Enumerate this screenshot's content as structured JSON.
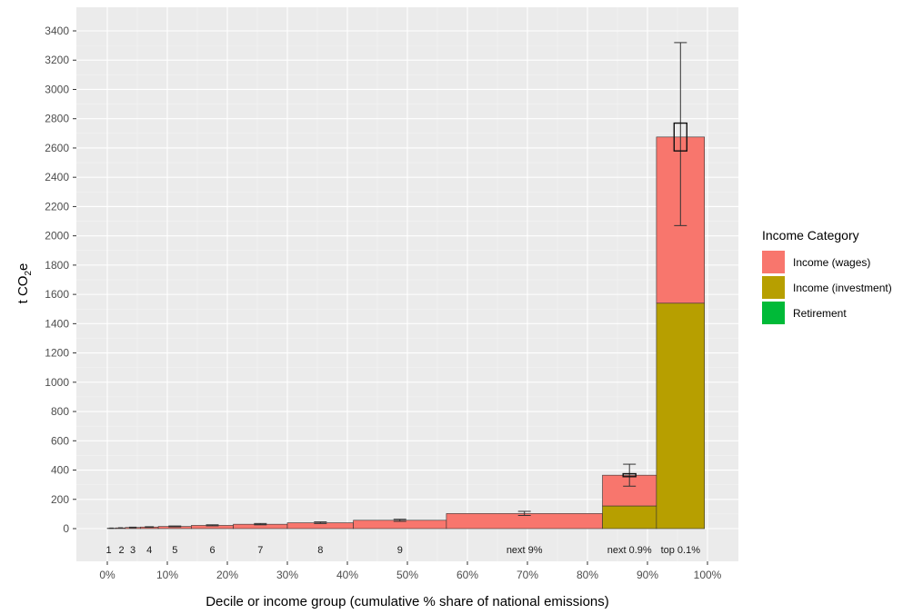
{
  "chart_data": {
    "type": "bar",
    "title": "",
    "xlabel": "Decile or income group (cumulative % share of national emissions)",
    "ylabel_main": "t CO",
    "ylabel_sub": "2",
    "ylabel_end": "e",
    "xlim": [
      0,
      100
    ],
    "ylim": [
      0,
      3400
    ],
    "y_ticks": [
      0,
      200,
      400,
      600,
      800,
      1000,
      1200,
      1400,
      1600,
      1800,
      2000,
      2200,
      2400,
      2600,
      2800,
      3000,
      3200,
      3400
    ],
    "x_ticks": [
      0,
      10,
      20,
      30,
      40,
      50,
      60,
      70,
      80,
      90,
      100
    ],
    "x_tick_labels": [
      "0%",
      "10%",
      "20%",
      "30%",
      "40%",
      "50%",
      "60%",
      "70%",
      "80%",
      "90%",
      "100%"
    ],
    "grid": true,
    "legend": {
      "title": "Income Category",
      "placement": "right",
      "entries": [
        {
          "name": "Income (wages)",
          "color": "#F8766D"
        },
        {
          "name": "Income (investment)",
          "color": "#B79F00"
        },
        {
          "name": "Retirement",
          "color": "#00BA38"
        }
      ]
    },
    "groups": [
      {
        "label": "1",
        "x_start": 0,
        "x_end": 1.4,
        "wages": 3,
        "investment": 0,
        "error": [
          2,
          4
        ]
      },
      {
        "label": "2",
        "x_start": 1.4,
        "x_end": 3,
        "wages": 5,
        "investment": 0,
        "error": [
          4,
          6
        ]
      },
      {
        "label": "3",
        "x_start": 3,
        "x_end": 5.5,
        "wages": 8,
        "investment": 0,
        "error": [
          6,
          10
        ]
      },
      {
        "label": "4",
        "x_start": 5.5,
        "x_end": 8.5,
        "wages": 11,
        "investment": 0,
        "error": [
          9,
          13
        ]
      },
      {
        "label": "5",
        "x_start": 8.5,
        "x_end": 14,
        "wages": 15,
        "investment": 0,
        "error": [
          12,
          18
        ]
      },
      {
        "label": "6",
        "x_start": 14,
        "x_end": 21,
        "wages": 22,
        "investment": 0,
        "error": [
          19,
          26
        ]
      },
      {
        "label": "7",
        "x_start": 21,
        "x_end": 30,
        "wages": 30,
        "investment": 0,
        "error": [
          26,
          35
        ]
      },
      {
        "label": "8",
        "x_start": 30,
        "x_end": 41,
        "wages": 40,
        "investment": 0,
        "error": [
          35,
          46
        ]
      },
      {
        "label": "9",
        "x_start": 41,
        "x_end": 56.5,
        "wages": 57,
        "investment": 0,
        "error": [
          50,
          64
        ]
      },
      {
        "label": "next 9%",
        "x_start": 56.5,
        "x_end": 82.5,
        "wages": 103,
        "investment": 0,
        "error": [
          90,
          118
        ]
      },
      {
        "label": "next 0.9%",
        "x_start": 82.5,
        "x_end": 91.5,
        "wages": 210,
        "investment": 155,
        "error": [
          290,
          440
        ],
        "error_inner": [
          355,
          375
        ]
      },
      {
        "label": "top 0.1%",
        "x_start": 91.5,
        "x_end": 99.5,
        "wages": 1135,
        "investment": 1540,
        "error": [
          2070,
          3320
        ],
        "error_inner": [
          2580,
          2770
        ]
      }
    ],
    "group_label_ypos": "below-zero"
  }
}
